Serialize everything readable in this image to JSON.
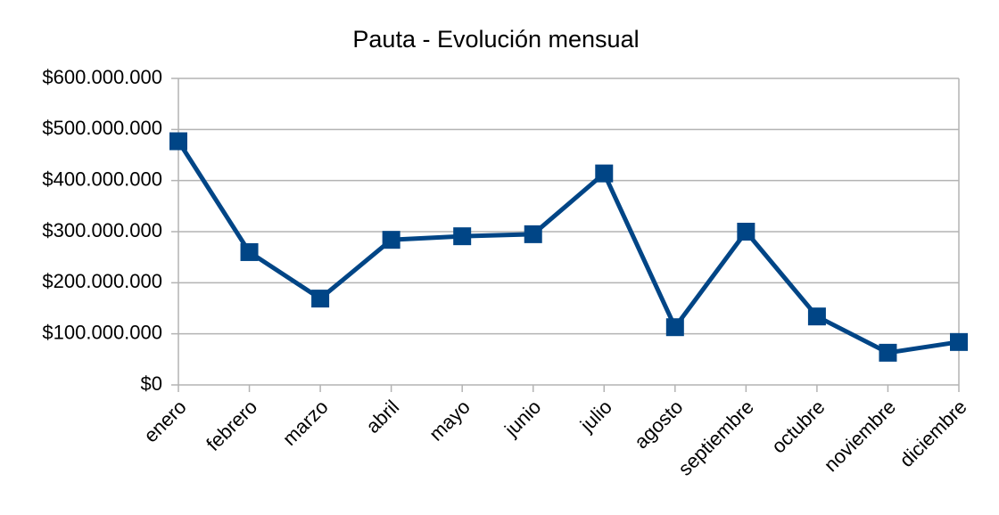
{
  "chart_data": {
    "type": "line",
    "title": "Pauta - Evolución mensual",
    "categories": [
      "enero",
      "febrero",
      "marzo",
      "abril",
      "mayo",
      "junio",
      "julio",
      "agosto",
      "septiembre",
      "octubre",
      "noviembre",
      "diciembre"
    ],
    "values": [
      477000000,
      260000000,
      169000000,
      284000000,
      291000000,
      295000000,
      414000000,
      113000000,
      300000000,
      134000000,
      63000000,
      84000000
    ],
    "color": "#004586",
    "ylim": [
      0,
      600000000
    ],
    "yticks": [
      {
        "value": 0,
        "label": "$0"
      },
      {
        "value": 100000000,
        "label": "$100.000.000"
      },
      {
        "value": 200000000,
        "label": "$200.000.000"
      },
      {
        "value": 300000000,
        "label": "$300.000.000"
      },
      {
        "value": 400000000,
        "label": "$400.000.000"
      },
      {
        "value": 500000000,
        "label": "$500.000.000"
      },
      {
        "value": 600000000,
        "label": "$600.000.000"
      }
    ],
    "grid": true
  }
}
